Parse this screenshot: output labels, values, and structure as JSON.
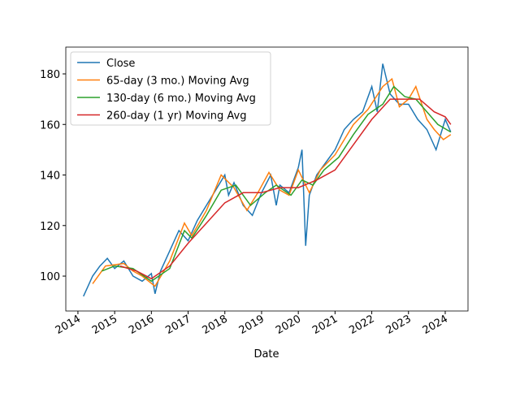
{
  "chart_data": {
    "type": "line",
    "x_label": "Date",
    "xlim": [
      2013.67,
      2024.62
    ],
    "xticks": [
      2014,
      2015,
      2016,
      2017,
      2018,
      2019,
      2020,
      2021,
      2022,
      2023,
      2024
    ],
    "ylim": [
      86.2,
      190.6
    ],
    "yticks": [
      100,
      120,
      140,
      160,
      180
    ],
    "grid": false,
    "legend": "upper-left",
    "series": [
      {
        "name": "Close",
        "color": "#1f77b4",
        "x": [
          2014.15,
          2014.4,
          2014.6,
          2014.8,
          2015.0,
          2015.25,
          2015.5,
          2015.75,
          2016.0,
          2016.1,
          2016.25,
          2016.5,
          2016.75,
          2017.0,
          2017.25,
          2017.5,
          2017.75,
          2018.0,
          2018.1,
          2018.25,
          2018.5,
          2018.75,
          2019.0,
          2019.25,
          2019.4,
          2019.5,
          2019.75,
          2020.0,
          2020.1,
          2020.2,
          2020.3,
          2020.5,
          2020.75,
          2021.0,
          2021.25,
          2021.5,
          2021.75,
          2022.0,
          2022.15,
          2022.3,
          2022.5,
          2022.75,
          2023.0,
          2023.25,
          2023.5,
          2023.75,
          2024.0,
          2024.15
        ],
        "values": [
          92,
          100,
          104,
          107,
          103,
          106,
          100,
          98,
          101,
          93,
          102,
          110,
          118,
          114,
          122,
          128,
          134,
          140,
          132,
          137,
          128,
          124,
          133,
          140,
          128,
          136,
          133,
          143,
          150,
          112,
          132,
          140,
          145,
          150,
          158,
          162,
          165,
          175,
          165,
          184,
          172,
          168,
          168,
          162,
          158,
          150,
          162,
          157
        ]
      },
      {
        "name": "65-day (3 mo.) Moving Avg",
        "color": "#ff7f0e",
        "x": [
          2014.4,
          2014.75,
          2015.25,
          2015.5,
          2015.75,
          2016.1,
          2016.5,
          2016.9,
          2017.1,
          2017.5,
          2017.9,
          2018.25,
          2018.6,
          2018.9,
          2019.2,
          2019.5,
          2019.75,
          2020.0,
          2020.3,
          2020.6,
          2021.0,
          2021.5,
          2021.9,
          2022.3,
          2022.55,
          2022.75,
          2023.0,
          2023.2,
          2023.5,
          2023.7,
          2023.95,
          2024.15
        ],
        "values": [
          97,
          104,
          105,
          102,
          100,
          96,
          106,
          121,
          116,
          126,
          140,
          135,
          126,
          133,
          141,
          134,
          132,
          142,
          133,
          142,
          148,
          160,
          166,
          175,
          178,
          167,
          170,
          175,
          162,
          158,
          154,
          156
        ]
      },
      {
        "name": "130-day (6 mo.) Moving Avg",
        "color": "#2ca02c",
        "x": [
          2014.65,
          2015.0,
          2015.5,
          2016.0,
          2016.5,
          2016.9,
          2017.1,
          2017.5,
          2017.9,
          2018.3,
          2018.7,
          2019.1,
          2019.4,
          2019.8,
          2020.1,
          2020.4,
          2020.7,
          2021.1,
          2021.5,
          2021.9,
          2022.3,
          2022.6,
          2022.9,
          2023.2,
          2023.5,
          2023.8,
          2024.15
        ],
        "values": [
          102,
          104,
          103,
          98,
          103,
          118,
          115,
          124,
          134,
          136,
          128,
          133,
          136,
          132,
          138,
          136,
          142,
          147,
          156,
          164,
          168,
          175,
          171,
          170,
          165,
          160,
          157
        ]
      },
      {
        "name": "260-day (1 yr) Moving Avg",
        "color": "#d62728",
        "x": [
          2015.15,
          2015.6,
          2016.0,
          2016.5,
          2017.0,
          2017.5,
          2018.0,
          2018.5,
          2019.0,
          2019.5,
          2020.0,
          2020.5,
          2021.0,
          2021.5,
          2022.0,
          2022.5,
          2022.9,
          2023.3,
          2023.7,
          2024.0,
          2024.15
        ],
        "values": [
          104,
          102,
          99,
          104,
          113,
          121,
          129,
          133,
          133,
          135,
          135,
          138,
          142,
          152,
          162,
          170,
          170,
          170,
          165,
          163,
          160
        ]
      }
    ]
  }
}
